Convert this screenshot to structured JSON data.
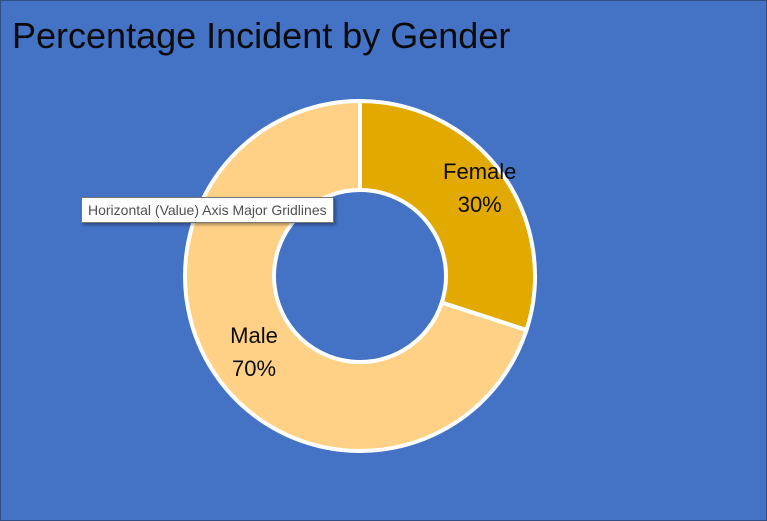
{
  "chart_data": {
    "type": "pie",
    "title": "Percentage Incident by Gender",
    "categories": [
      "Female",
      "Male"
    ],
    "values": [
      30,
      70
    ],
    "labels": [
      "30%",
      "70%"
    ],
    "colors": [
      "#e2a900",
      "#ffd186"
    ],
    "background_color": "#4472c4",
    "hole": "donut",
    "legend": "none"
  },
  "tooltip": {
    "text": "Horizontal (Value) Axis Major Gridlines"
  }
}
